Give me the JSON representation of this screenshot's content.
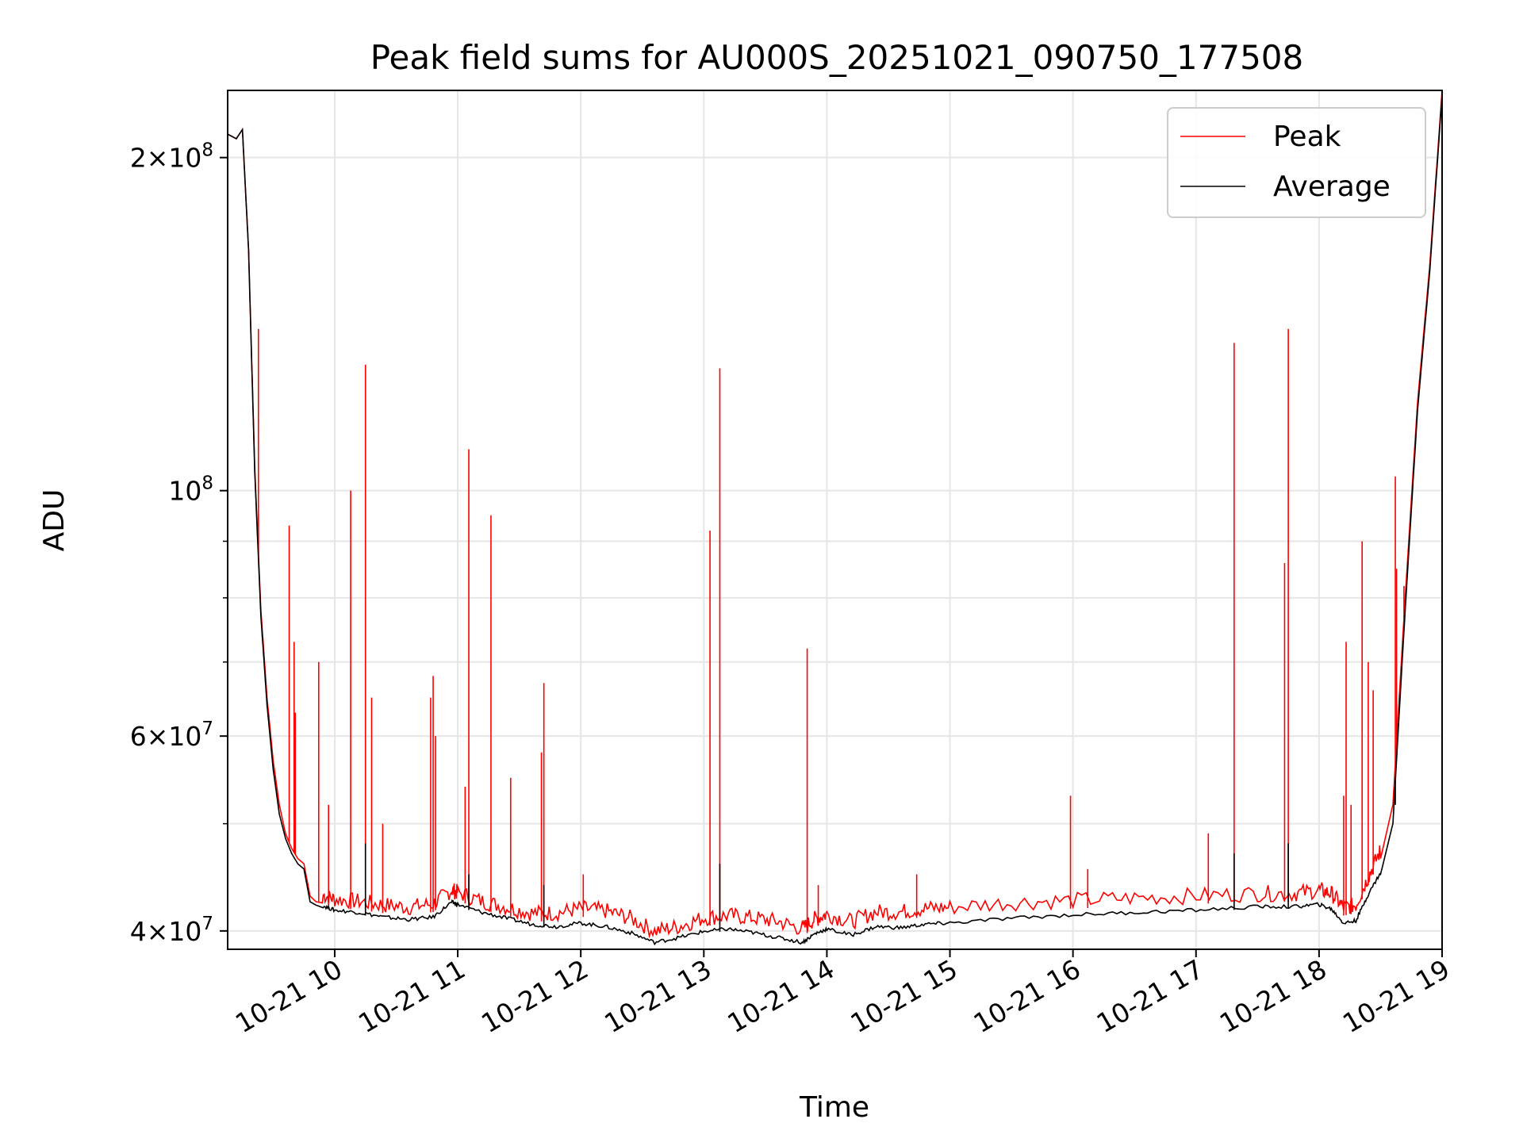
{
  "chart_data": {
    "type": "line",
    "title": "Peak field sums for AU000S_20251021_090750_177508",
    "xlabel": "Time",
    "ylabel": "ADU",
    "yscale": "log",
    "xlim": [
      9.13,
      19.0
    ],
    "ylim": [
      38500000,
      230000000
    ],
    "grid": true,
    "legend_position": "top-right",
    "x_ticks": [
      {
        "value": 10,
        "label": "10-21 10"
      },
      {
        "value": 11,
        "label": "10-21 11"
      },
      {
        "value": 12,
        "label": "10-21 12"
      },
      {
        "value": 13,
        "label": "10-21 13"
      },
      {
        "value": 14,
        "label": "10-21 14"
      },
      {
        "value": 15,
        "label": "10-21 15"
      },
      {
        "value": 16,
        "label": "10-21 16"
      },
      {
        "value": 17,
        "label": "10-21 17"
      },
      {
        "value": 18,
        "label": "10-21 18"
      },
      {
        "value": 19,
        "label": "10-21 19"
      }
    ],
    "y_major_ticks": [
      {
        "value": 40000000,
        "mantissa": "4",
        "exponent": "7"
      },
      {
        "value": 60000000,
        "mantissa": "6",
        "exponent": "7"
      },
      {
        "value": 100000000,
        "mantissa": "",
        "exponent": "8"
      },
      {
        "value": 200000000,
        "mantissa": "2",
        "exponent": "8"
      }
    ],
    "y_minor_grid": [
      50000000,
      70000000,
      80000000,
      90000000
    ],
    "series": [
      {
        "name": "Peak",
        "color": "#ff0000",
        "x": [
          9.13,
          9.2,
          9.25,
          9.3,
          9.35,
          9.4,
          9.45,
          9.5,
          9.55,
          9.6,
          9.65,
          9.7,
          9.75,
          9.8,
          9.85,
          9.9,
          10.0,
          10.2,
          10.4,
          10.6,
          10.8,
          10.95,
          11.0,
          11.2,
          11.4,
          11.6,
          11.8,
          12.0,
          12.2,
          12.4,
          12.6,
          12.8,
          13.0,
          13.2,
          13.4,
          13.6,
          13.8,
          13.9,
          14.0,
          14.2,
          14.4,
          14.6,
          14.8,
          15.0,
          15.5,
          16.0,
          16.5,
          17.0,
          17.5,
          17.8,
          18.0,
          18.1,
          18.2,
          18.3,
          18.4,
          18.5,
          18.6,
          18.7,
          18.8,
          18.9,
          19.0
        ],
        "values": [
          210000000,
          208000000,
          212000000,
          165000000,
          105000000,
          78000000,
          65000000,
          57000000,
          52000000,
          49000000,
          47500000,
          46500000,
          46000000,
          43000000,
          42500000,
          42400000,
          42000000,
          41800000,
          41500000,
          41300000,
          41600000,
          42800000,
          42600000,
          41800000,
          41300000,
          40800000,
          40800000,
          41200000,
          41000000,
          40400000,
          39300000,
          39700000,
          40400000,
          40600000,
          40400000,
          40100000,
          39500000,
          40300000,
          40700000,
          40100000,
          40900000,
          40900000,
          41200000,
          41300000,
          41700000,
          41900000,
          42100000,
          42300000,
          42500000,
          42500000,
          42800000,
          42500000,
          41300000,
          41500000,
          44000000,
          46500000,
          52000000,
          80000000,
          120000000,
          160000000,
          230000000
        ],
        "spikes": [
          [
            9.38,
            140000000
          ],
          [
            9.38,
            95000000
          ],
          [
            9.63,
            93000000
          ],
          [
            9.67,
            73000000
          ],
          [
            9.68,
            63000000
          ],
          [
            9.87,
            70000000
          ],
          [
            9.95,
            52000000
          ],
          [
            10.13,
            100000000
          ],
          [
            10.25,
            130000000
          ],
          [
            10.3,
            65000000
          ],
          [
            10.39,
            50000000
          ],
          [
            10.78,
            65000000
          ],
          [
            10.8,
            68000000
          ],
          [
            10.82,
            60000000
          ],
          [
            11.09,
            109000000
          ],
          [
            11.06,
            54000000
          ],
          [
            11.27,
            95000000
          ],
          [
            11.43,
            55000000
          ],
          [
            11.68,
            58000000
          ],
          [
            11.7,
            67000000
          ],
          [
            12.02,
            45000000
          ],
          [
            13.05,
            92000000
          ],
          [
            13.13,
            129000000
          ],
          [
            13.84,
            72000000
          ],
          [
            13.93,
            44000000
          ],
          [
            14.73,
            45000000
          ],
          [
            15.98,
            53000000
          ],
          [
            16.12,
            45500000
          ],
          [
            17.1,
            49000000
          ],
          [
            17.31,
            136000000
          ],
          [
            17.72,
            86000000
          ],
          [
            17.75,
            140000000
          ],
          [
            18.2,
            53000000
          ],
          [
            18.22,
            73000000
          ],
          [
            18.26,
            52000000
          ],
          [
            18.35,
            90000000
          ],
          [
            18.4,
            70000000
          ],
          [
            18.44,
            66000000
          ],
          [
            18.62,
            103000000
          ],
          [
            18.63,
            85000000
          ],
          [
            18.69,
            82000000
          ]
        ]
      },
      {
        "name": "Average",
        "color": "#000000",
        "x": [
          9.13,
          9.2,
          9.25,
          9.3,
          9.35,
          9.4,
          9.45,
          9.5,
          9.55,
          9.6,
          9.65,
          9.7,
          9.75,
          9.8,
          9.85,
          9.9,
          10.0,
          10.2,
          10.4,
          10.6,
          10.8,
          10.95,
          11.0,
          11.2,
          11.4,
          11.6,
          11.8,
          12.0,
          12.2,
          12.4,
          12.6,
          12.8,
          13.0,
          13.2,
          13.4,
          13.6,
          13.8,
          13.9,
          14.0,
          14.2,
          14.4,
          14.6,
          14.8,
          15.0,
          15.5,
          16.0,
          16.5,
          17.0,
          17.5,
          17.8,
          18.0,
          18.1,
          18.2,
          18.3,
          18.4,
          18.5,
          18.6,
          18.7,
          18.8,
          18.9,
          19.0
        ],
        "values": [
          210000000,
          208000000,
          212000000,
          165000000,
          104000000,
          77000000,
          64000000,
          56000000,
          51000000,
          48500000,
          47000000,
          46000000,
          45500000,
          42500000,
          42200000,
          42000000,
          41600000,
          41400000,
          41000000,
          40800000,
          41000000,
          42300000,
          42100000,
          41400000,
          40900000,
          40400000,
          40200000,
          40500000,
          40200000,
          39700000,
          38900000,
          39300000,
          39800000,
          40000000,
          39700000,
          39300000,
          38900000,
          39600000,
          40000000,
          39500000,
          40200000,
          40100000,
          40400000,
          40500000,
          40900000,
          41200000,
          41400000,
          41600000,
          41900000,
          41900000,
          42100000,
          41700000,
          40500000,
          40700000,
          43000000,
          45000000,
          50000000,
          78000000,
          118000000,
          158000000,
          228000000
        ],
        "spikes": [
          [
            10.25,
            48000000
          ],
          [
            11.09,
            45000000
          ],
          [
            11.7,
            44000000
          ],
          [
            13.13,
            46000000
          ],
          [
            17.31,
            47000000
          ],
          [
            17.75,
            48000000
          ],
          [
            18.62,
            52000000
          ]
        ]
      }
    ]
  }
}
